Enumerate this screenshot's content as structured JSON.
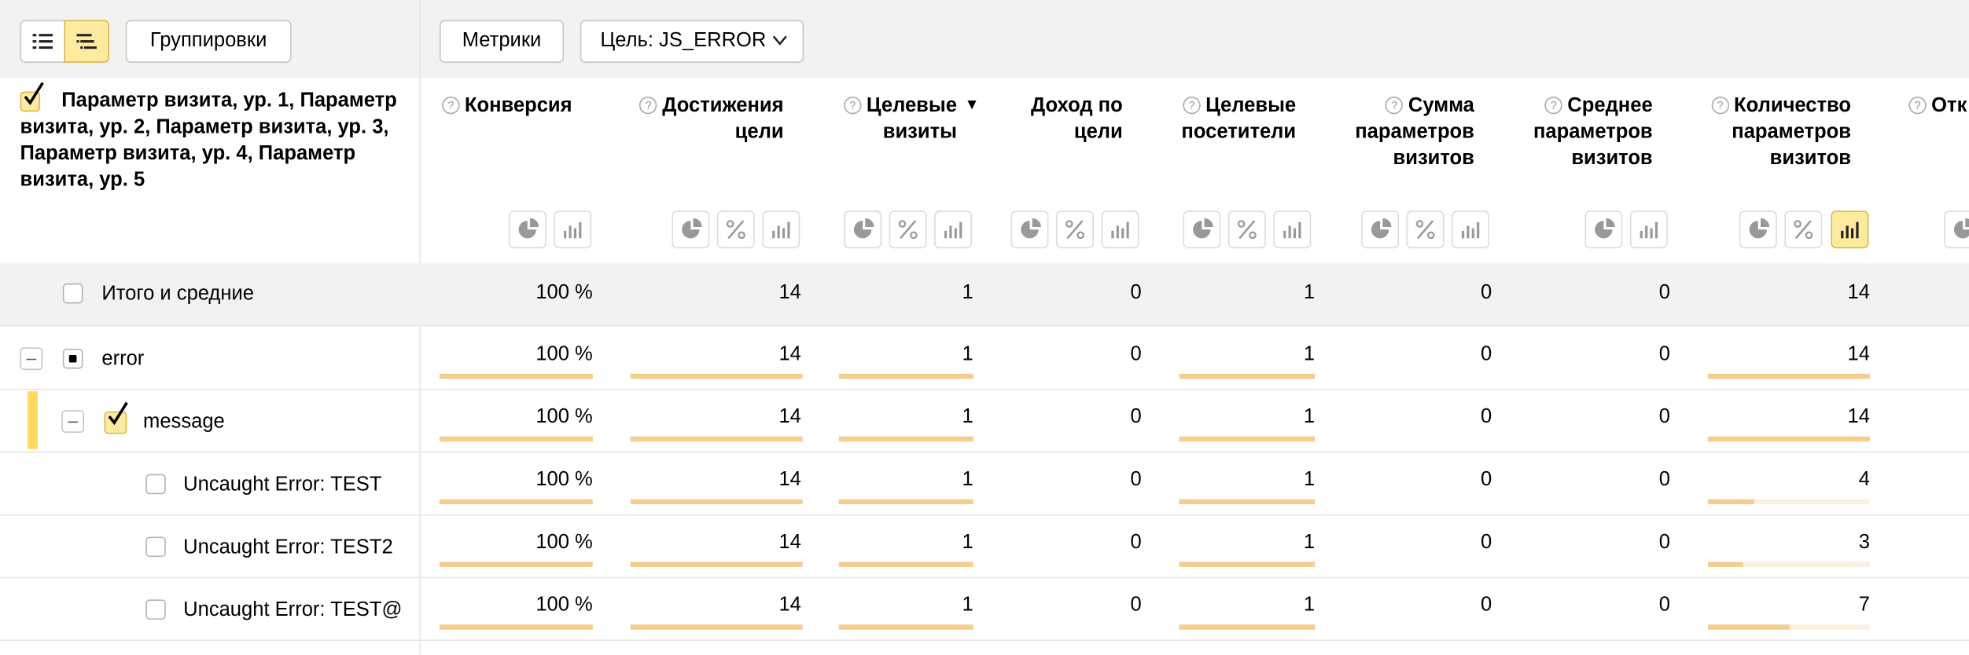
{
  "toolbar": {
    "view_list_icon": "list-icon",
    "view_tree_icon": "tree-icon",
    "groupings_label": "Группировки",
    "metrics_label": "Метрики",
    "goal_label": "Цель: JS_ERROR"
  },
  "dimension_header": "Параметр визита, ур. 1, Параметр визита, ур. 2, Параметр визита, ур. 3, Параметр визита, ур. 4, Параметр визита, ур. 5",
  "columns": [
    {
      "label": "Конверсия",
      "help": "?"
    },
    {
      "label": "Достижения цели",
      "help": "?"
    },
    {
      "label": "Целевые визиты",
      "help": "?",
      "sort": "▼"
    },
    {
      "label": "Доход по цели"
    },
    {
      "label": "Целевые посетители",
      "help": "?"
    },
    {
      "label": "Сумма параметров визитов",
      "help": "?"
    },
    {
      "label": "Среднее параметров визитов",
      "help": "?"
    },
    {
      "label": "Количество параметров визитов",
      "help": "?"
    },
    {
      "label": "Отк",
      "help": "?"
    }
  ],
  "rows": [
    {
      "label": "Итого и средние",
      "level": 0,
      "values": [
        "100 %",
        "14",
        "1",
        "0",
        "1",
        "0",
        "0",
        "14"
      ]
    },
    {
      "label": "error",
      "level": 1,
      "values": [
        "100 %",
        "14",
        "1",
        "0",
        "1",
        "0",
        "0",
        "14"
      ],
      "bars": [
        1,
        1,
        1,
        0,
        1,
        0,
        0,
        1
      ]
    },
    {
      "label": "message",
      "level": 2,
      "values": [
        "100 %",
        "14",
        "1",
        "0",
        "1",
        "0",
        "0",
        "14"
      ],
      "bars": [
        1,
        1,
        1,
        0,
        1,
        0,
        0,
        1
      ]
    },
    {
      "label": "Uncaught Error: TEST",
      "level": 3,
      "values": [
        "100 %",
        "14",
        "1",
        "0",
        "1",
        "0",
        "0",
        "4"
      ],
      "bars": [
        1,
        1,
        1,
        0,
        1,
        0,
        0,
        0.286
      ]
    },
    {
      "label": "Uncaught Error: TEST2",
      "level": 3,
      "values": [
        "100 %",
        "14",
        "1",
        "0",
        "1",
        "0",
        "0",
        "3"
      ],
      "bars": [
        1,
        1,
        1,
        0,
        1,
        0,
        0,
        0.214
      ]
    },
    {
      "label": "Uncaught Error: TEST@",
      "level": 3,
      "values": [
        "100 %",
        "14",
        "1",
        "0",
        "1",
        "0",
        "0",
        "7"
      ],
      "bars": [
        1,
        1,
        1,
        0,
        1,
        0,
        0,
        0.5
      ]
    }
  ],
  "colors": {
    "accent": "#ffeba0",
    "bar": "#f7cd8e",
    "bar_track": "#faf1df",
    "toolbar_bg": "#f3f2f0"
  }
}
